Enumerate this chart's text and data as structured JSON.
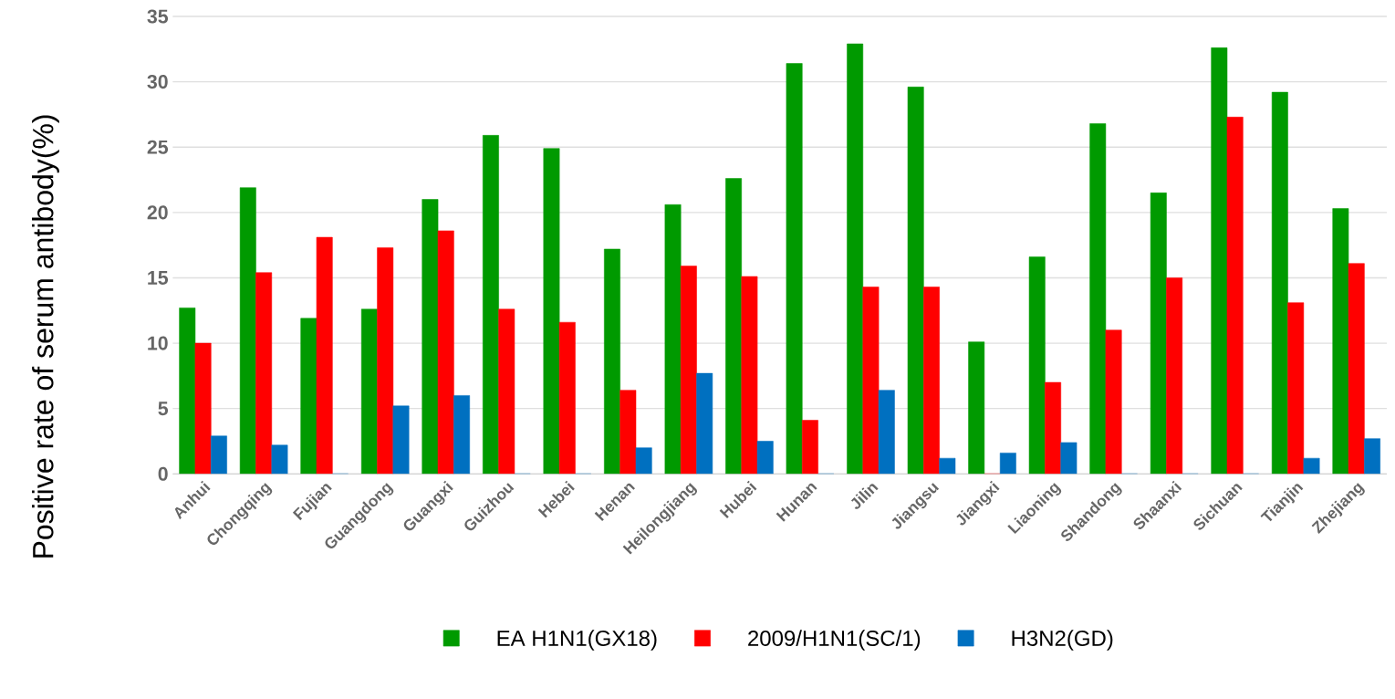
{
  "chart_data": {
    "type": "bar",
    "ylabel": "Positive rate of serum antibody(%)",
    "categories": [
      "Anhui",
      "Chongqing",
      "Fujian",
      "Guangdong",
      "Guangxi",
      "Guizhou",
      "Hebei",
      "Henan",
      "Heilongjiang",
      "Hubei",
      "Hunan",
      "Jilin",
      "Jiangsu",
      "Jiangxi",
      "Liaoning",
      "Shandong",
      "Shaanxi",
      "Sichuan",
      "Tianjin",
      "Zhejiang"
    ],
    "series": [
      {
        "name": "EA H1N1(GX18)",
        "color": "#009a00",
        "values": [
          12.7,
          21.9,
          11.9,
          12.6,
          21.0,
          25.9,
          24.9,
          17.2,
          20.6,
          22.6,
          31.4,
          32.9,
          29.6,
          10.1,
          16.6,
          26.8,
          21.5,
          32.6,
          29.2,
          20.3
        ]
      },
      {
        "name": "2009/H1N1(SC/1)",
        "color": "#ff0000",
        "values": [
          10.0,
          15.4,
          18.1,
          17.3,
          18.6,
          12.6,
          11.6,
          6.4,
          15.9,
          15.1,
          4.1,
          14.3,
          14.3,
          0,
          7.0,
          11.0,
          15.0,
          27.3,
          13.1,
          16.1
        ]
      },
      {
        "name": "H3N2(GD)",
        "color": "#0070c0",
        "values": [
          2.9,
          2.2,
          0,
          5.2,
          6.0,
          0,
          0,
          2.0,
          7.7,
          2.5,
          0,
          6.4,
          1.2,
          1.6,
          2.4,
          0,
          0,
          0,
          1.2,
          2.7
        ]
      }
    ],
    "ylim": [
      0,
      35
    ],
    "yticks": [
      0,
      5,
      10,
      15,
      20,
      25,
      30,
      35
    ],
    "grid": "y",
    "legend": "bottom"
  }
}
